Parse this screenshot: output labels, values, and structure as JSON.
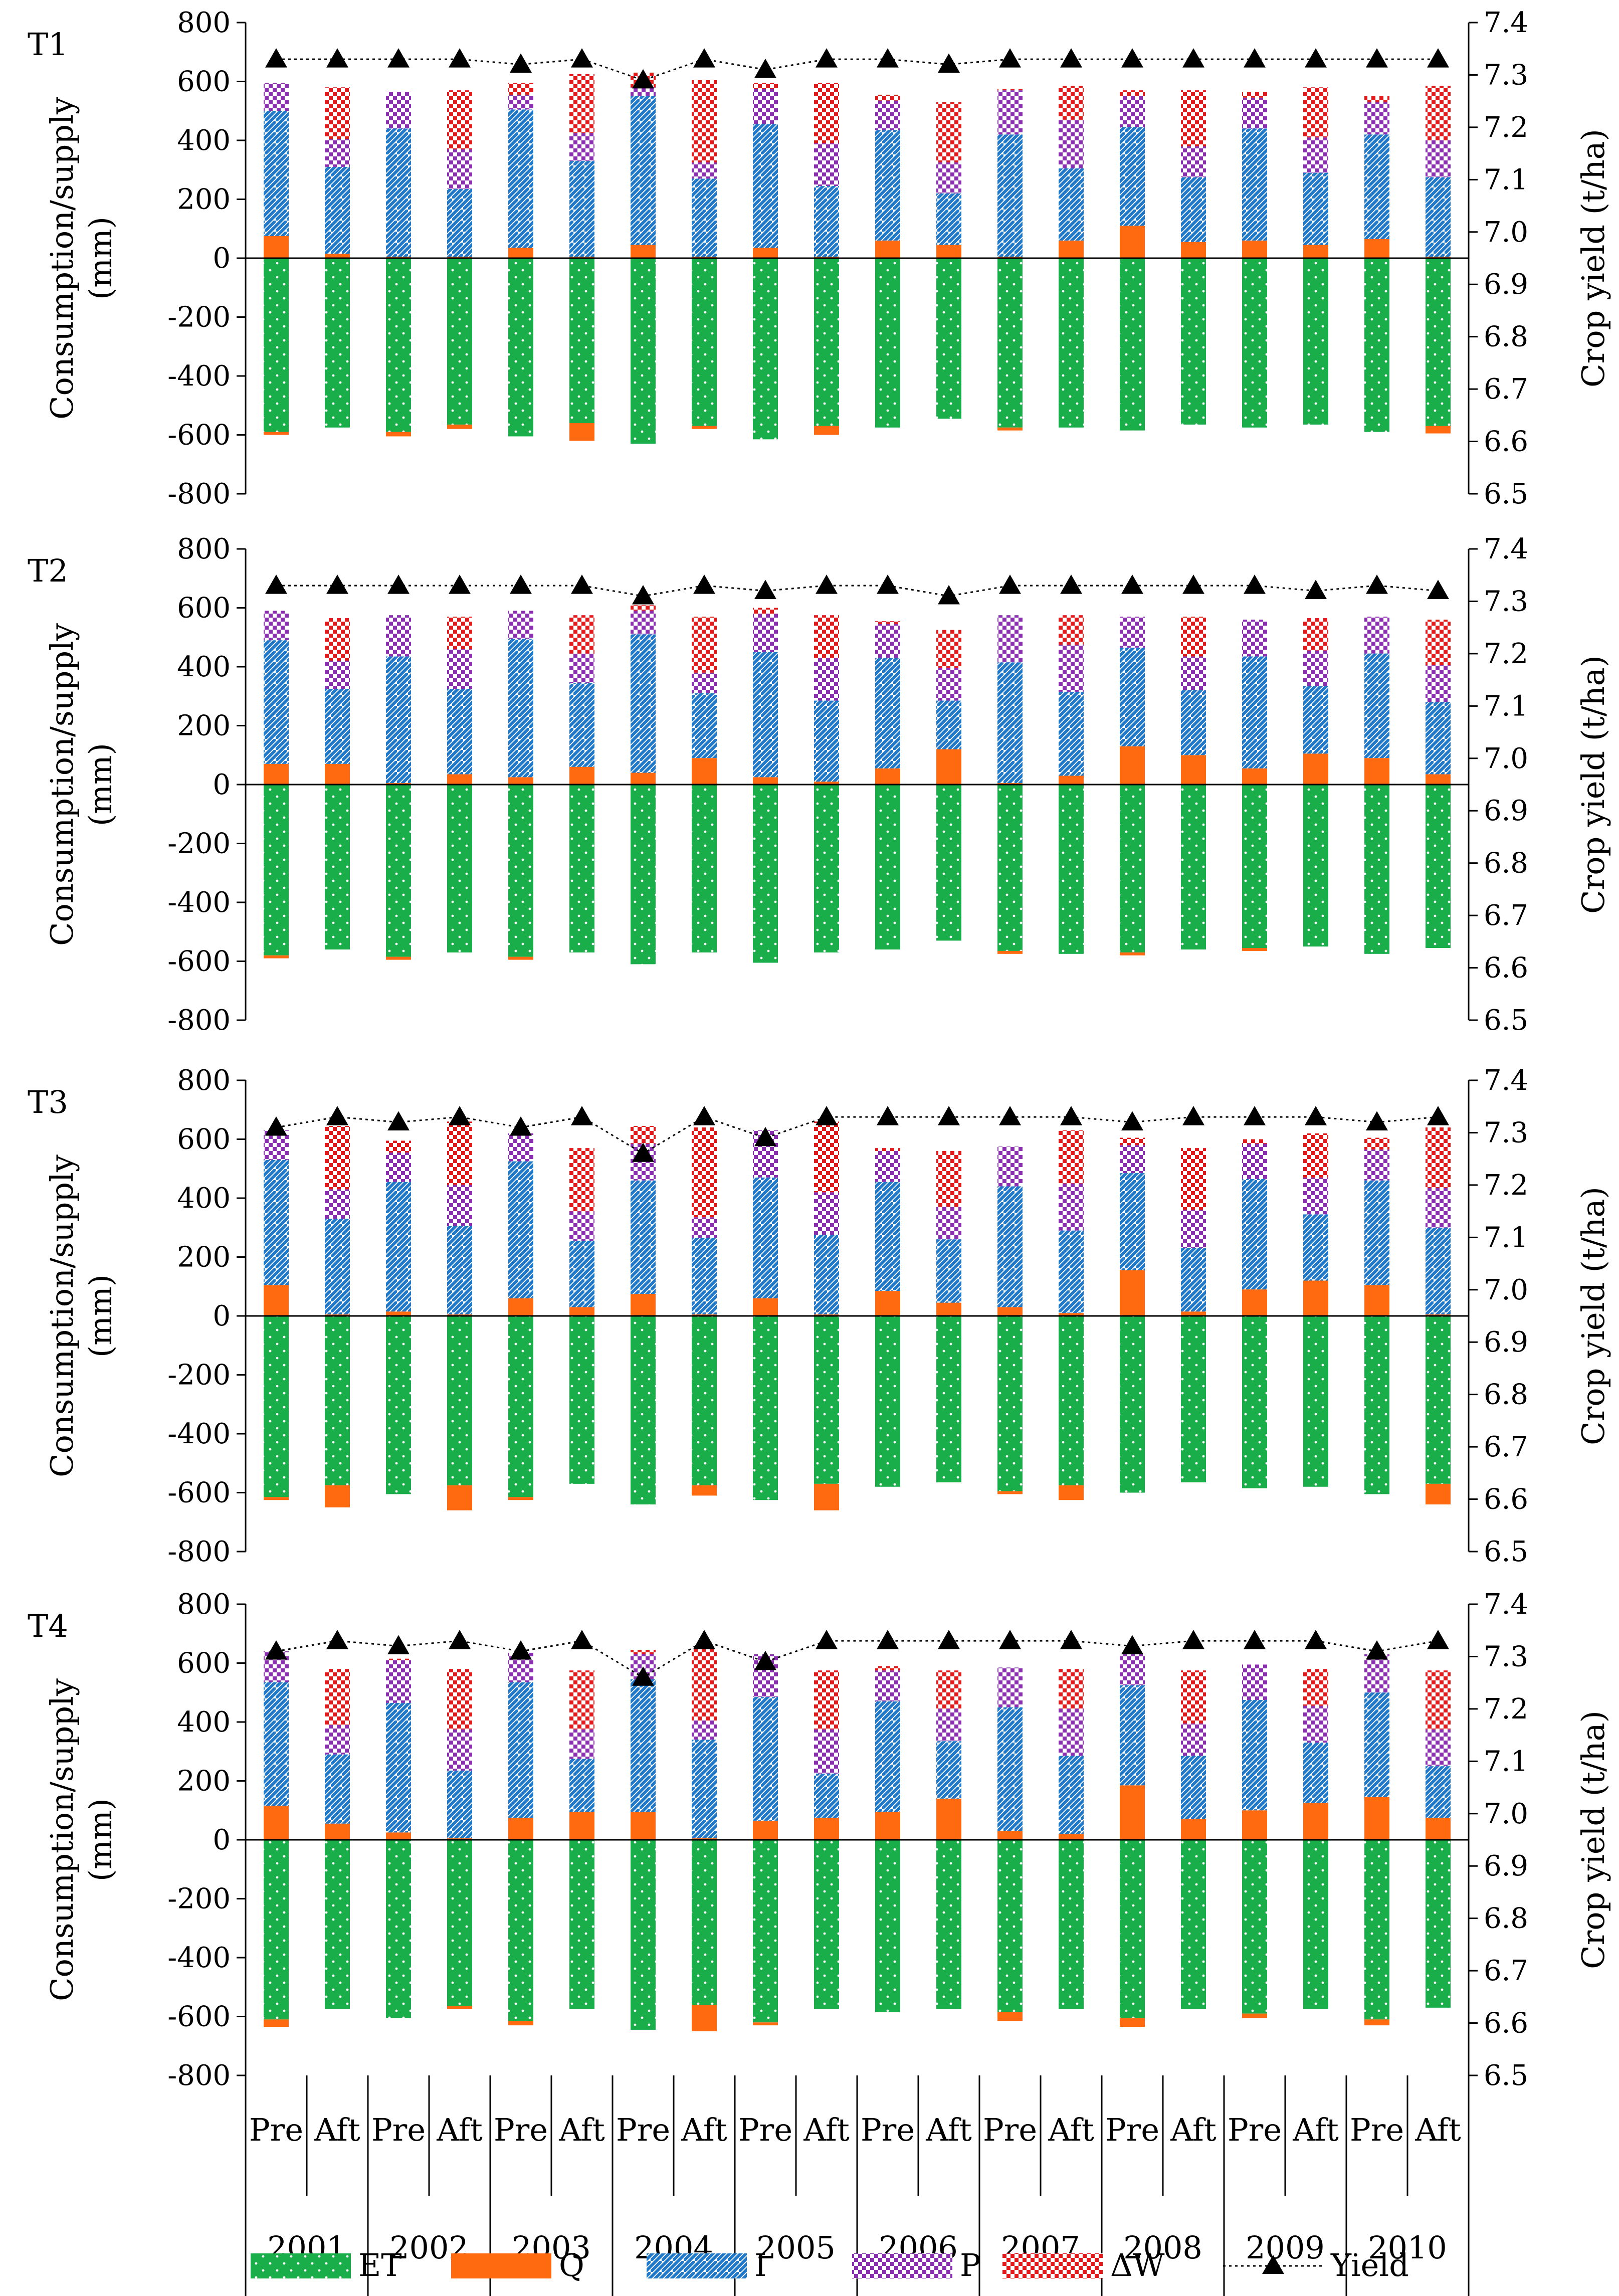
{
  "chart_data": {
    "type": "bar",
    "subtype": "stacked diverging bar with line on secondary axis",
    "legend": {
      "position": "bottom",
      "entries": [
        {
          "key": "ET",
          "label": "ET",
          "color": "#1aae4a",
          "pattern": "dots"
        },
        {
          "key": "Q",
          "label": "Q",
          "color": "#ff6a10",
          "pattern": "solid"
        },
        {
          "key": "I",
          "label": "I",
          "color": "#1f78c8",
          "pattern": "diagonal"
        },
        {
          "key": "P",
          "label": "P",
          "color": "#8a2fb0",
          "pattern": "checker"
        },
        {
          "key": "DW",
          "label": "ΔW",
          "color": "#e01b1b",
          "pattern": "checker"
        },
        {
          "key": "Yield",
          "label": "Yield",
          "color": "#000000",
          "pattern": "dotted-line-triangle"
        }
      ]
    },
    "categories": [
      "Pre",
      "Aft",
      "Pre",
      "Aft",
      "Pre",
      "Aft",
      "Pre",
      "Aft",
      "Pre",
      "Aft",
      "Pre",
      "Aft",
      "Pre",
      "Aft",
      "Pre",
      "Aft",
      "Pre",
      "Aft",
      "Pre",
      "Aft"
    ],
    "years": [
      "2001",
      "2002",
      "2003",
      "2004",
      "2005",
      "2006",
      "2007",
      "2008",
      "2009",
      "2010"
    ],
    "left_axis": {
      "title_line1": "Consumption/supply",
      "title_line2": "(mm)",
      "ylim": [
        -800,
        800
      ],
      "ticks": [
        800,
        600,
        400,
        200,
        0,
        -200,
        -400,
        -600,
        -800
      ]
    },
    "right_axis": {
      "title": "Crop yield (t/ha)",
      "ylim": [
        6.5,
        7.4
      ],
      "ticks": [
        "7.4",
        "7.3",
        "7.2",
        "7.1",
        "7.0",
        "6.9",
        "6.8",
        "6.7",
        "6.6",
        "6.5"
      ]
    },
    "panels": [
      {
        "label": "T1",
        "positive": {
          "Q": [
            75,
            15,
            5,
            5,
            35,
            5,
            45,
            5,
            35,
            5,
            60,
            45,
            5,
            60,
            110,
            55,
            60,
            45,
            65,
            5
          ],
          "I": [
            425,
            295,
            435,
            230,
            470,
            325,
            505,
            265,
            420,
            240,
            375,
            175,
            415,
            245,
            335,
            220,
            380,
            245,
            355,
            270
          ],
          "P": [
            95,
            95,
            125,
            135,
            50,
            95,
            30,
            55,
            120,
            145,
            100,
            105,
            150,
            165,
            105,
            105,
            105,
            120,
            110,
            125
          ],
          "DW": [
            0,
            175,
            0,
            200,
            40,
            200,
            50,
            280,
            20,
            205,
            20,
            205,
            5,
            115,
            20,
            190,
            20,
            170,
            20,
            185
          ]
        },
        "negative": {
          "ET": [
            -590,
            -575,
            -590,
            -565,
            -605,
            -560,
            -630,
            -570,
            -615,
            -570,
            -575,
            -545,
            -575,
            -575,
            -585,
            -565,
            -575,
            -565,
            -590,
            -570
          ],
          "Q": [
            -10,
            0,
            -15,
            -15,
            0,
            -60,
            0,
            -10,
            0,
            -30,
            0,
            0,
            -10,
            0,
            0,
            0,
            0,
            0,
            0,
            -25
          ]
        },
        "yield": [
          7.33,
          7.33,
          7.33,
          7.33,
          7.32,
          7.33,
          7.29,
          7.33,
          7.31,
          7.33,
          7.33,
          7.32,
          7.33,
          7.33,
          7.33,
          7.33,
          7.33,
          7.33,
          7.33,
          7.33
        ]
      },
      {
        "label": "T2",
        "positive": {
          "Q": [
            70,
            70,
            5,
            35,
            25,
            60,
            40,
            90,
            25,
            10,
            55,
            120,
            5,
            30,
            130,
            100,
            55,
            105,
            90,
            35
          ],
          "I": [
            420,
            255,
            430,
            290,
            470,
            285,
            470,
            220,
            425,
            275,
            375,
            165,
            410,
            285,
            335,
            220,
            380,
            230,
            355,
            245
          ],
          "P": [
            100,
            95,
            140,
            135,
            95,
            100,
            80,
            70,
            130,
            145,
            115,
            110,
            160,
            160,
            105,
            115,
            125,
            120,
            125,
            125
          ],
          "DW": [
            0,
            145,
            0,
            110,
            0,
            130,
            20,
            190,
            20,
            145,
            10,
            130,
            0,
            100,
            0,
            135,
            0,
            110,
            0,
            155
          ]
        },
        "negative": {
          "ET": [
            -580,
            -560,
            -585,
            -570,
            -585,
            -570,
            -610,
            -570,
            -605,
            -570,
            -560,
            -530,
            -565,
            -575,
            -570,
            -560,
            -555,
            -550,
            -575,
            -555
          ],
          "Q": [
            -10,
            0,
            -10,
            0,
            -10,
            0,
            0,
            0,
            0,
            0,
            0,
            0,
            -10,
            0,
            -10,
            0,
            -10,
            0,
            0,
            0
          ]
        },
        "yield": [
          7.33,
          7.33,
          7.33,
          7.33,
          7.33,
          7.33,
          7.31,
          7.33,
          7.32,
          7.33,
          7.33,
          7.31,
          7.33,
          7.33,
          7.33,
          7.33,
          7.33,
          7.32,
          7.33,
          7.32
        ]
      },
      {
        "label": "T3",
        "positive": {
          "Q": [
            105,
            5,
            15,
            5,
            60,
            30,
            75,
            5,
            60,
            5,
            85,
            45,
            30,
            10,
            155,
            15,
            90,
            120,
            105,
            5
          ],
          "I": [
            425,
            325,
            440,
            300,
            465,
            225,
            385,
            260,
            410,
            270,
            370,
            215,
            410,
            280,
            330,
            215,
            375,
            225,
            355,
            295
          ],
          "P": [
            100,
            100,
            100,
            140,
            95,
            100,
            125,
            70,
            160,
            145,
            105,
            110,
            135,
            160,
            95,
            130,
            120,
            125,
            105,
            135
          ],
          "DW": [
            0,
            215,
            40,
            215,
            0,
            215,
            60,
            305,
            0,
            240,
            10,
            190,
            0,
            180,
            25,
            210,
            15,
            150,
            40,
            205
          ]
        },
        "negative": {
          "ET": [
            -615,
            -575,
            -605,
            -575,
            -615,
            -570,
            -640,
            -575,
            -625,
            -570,
            -580,
            -565,
            -595,
            -575,
            -600,
            -565,
            -585,
            -580,
            -605,
            -570
          ],
          "Q": [
            -10,
            -75,
            0,
            -85,
            -10,
            0,
            0,
            -35,
            0,
            -90,
            0,
            0,
            -10,
            -50,
            0,
            0,
            0,
            0,
            0,
            -70
          ]
        },
        "yield": [
          7.31,
          7.33,
          7.32,
          7.33,
          7.31,
          7.33,
          7.26,
          7.33,
          7.29,
          7.33,
          7.33,
          7.33,
          7.33,
          7.33,
          7.32,
          7.33,
          7.33,
          7.33,
          7.32,
          7.33
        ]
      },
      {
        "label": "T4",
        "positive": {
          "Q": [
            115,
            55,
            25,
            5,
            75,
            95,
            95,
            5,
            65,
            75,
            95,
            140,
            30,
            20,
            185,
            70,
            100,
            125,
            145,
            75
          ],
          "I": [
            420,
            235,
            440,
            230,
            460,
            180,
            450,
            335,
            420,
            150,
            375,
            195,
            420,
            265,
            340,
            215,
            375,
            205,
            355,
            175
          ],
          "P": [
            105,
            100,
            145,
            140,
            100,
            100,
            85,
            65,
            145,
            150,
            105,
            110,
            135,
            160,
            110,
            110,
            120,
            125,
            130,
            125
          ],
          "DW": [
            0,
            190,
            5,
            205,
            0,
            200,
            15,
            245,
            0,
            200,
            15,
            130,
            0,
            135,
            0,
            180,
            0,
            125,
            0,
            200
          ]
        },
        "negative": {
          "ET": [
            -610,
            -575,
            -605,
            -565,
            -615,
            -575,
            -645,
            -560,
            -620,
            -575,
            -585,
            -575,
            -585,
            -575,
            -605,
            -575,
            -590,
            -575,
            -610,
            -570
          ],
          "Q": [
            -25,
            0,
            0,
            -10,
            -15,
            0,
            0,
            -90,
            -10,
            0,
            0,
            0,
            -30,
            0,
            -30,
            0,
            -15,
            0,
            -20,
            0
          ]
        },
        "yield": [
          7.31,
          7.33,
          7.32,
          7.33,
          7.31,
          7.33,
          7.26,
          7.33,
          7.29,
          7.33,
          7.33,
          7.33,
          7.33,
          7.33,
          7.32,
          7.33,
          7.33,
          7.33,
          7.31,
          7.33
        ]
      }
    ]
  }
}
